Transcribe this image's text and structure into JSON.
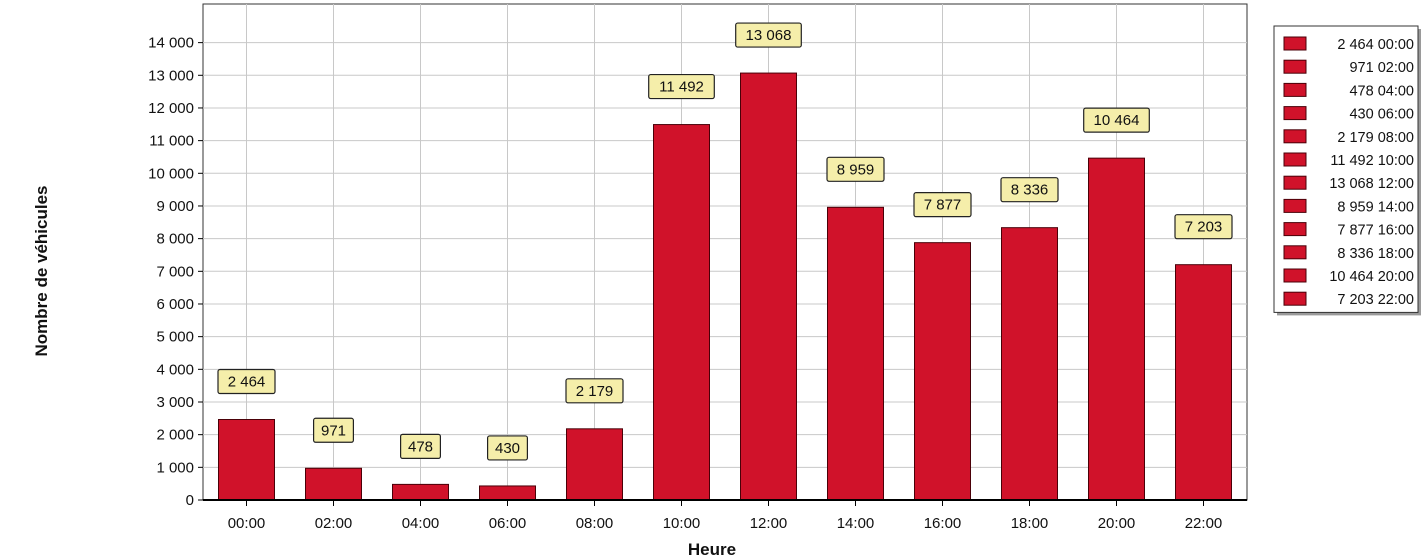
{
  "chart_data": {
    "type": "bar",
    "title": "",
    "xlabel": "Heure",
    "ylabel": "Nombre de véhicules",
    "categories": [
      "00:00",
      "02:00",
      "04:00",
      "06:00",
      "08:00",
      "10:00",
      "12:00",
      "14:00",
      "16:00",
      "18:00",
      "20:00",
      "22:00"
    ],
    "values": [
      2464,
      971,
      478,
      430,
      2179,
      11492,
      13068,
      8959,
      7877,
      8336,
      10464,
      7203
    ],
    "value_labels": [
      "2 464",
      "971",
      "478",
      "430",
      "2 179",
      "11 492",
      "13 068",
      "8 959",
      "7 877",
      "8 336",
      "10 464",
      "7 203"
    ],
    "ylim": [
      0,
      15000
    ],
    "yticks": [
      0,
      1000,
      2000,
      3000,
      4000,
      5000,
      6000,
      7000,
      8000,
      9000,
      10000,
      11000,
      12000,
      13000,
      14000
    ],
    "ytick_labels": [
      "0",
      "1 000",
      "2 000",
      "3 000",
      "4 000",
      "5 000",
      "6 000",
      "7 000",
      "8 000",
      "9 000",
      "10 000",
      "11 000",
      "12 000",
      "13 000",
      "14 000"
    ],
    "legend": {
      "placement": "right",
      "entries": [
        "2 464 00:00",
        "971 02:00",
        "478 04:00",
        "430 06:00",
        "2 179 08:00",
        "11 492 10:00",
        "13 068 12:00",
        "8 959 14:00",
        "7 877 16:00",
        "8 336 18:00",
        "10 464 20:00",
        "7 203 22:00"
      ]
    },
    "grid": true,
    "colors": {
      "bar": "#d0122a",
      "label_bg": "#f5eeaa",
      "grid": "#c8c8c8"
    }
  }
}
